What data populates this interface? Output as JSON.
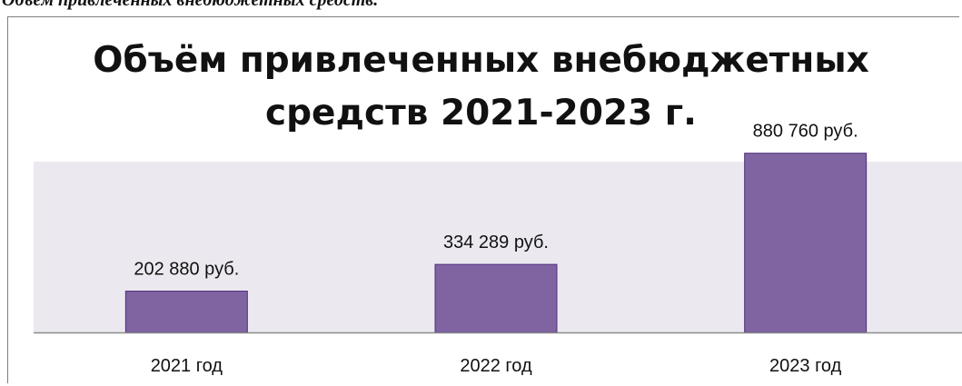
{
  "caption": "Объём привлеченных внебюджетных средств.",
  "chart_data": {
    "type": "bar",
    "title": "Объём привлеченных внебюджетных средств 2021-2023 г.",
    "title_lines": [
      "Объём привлеченных внебюджетных",
      "средств 2021-2023 г."
    ],
    "categories": [
      "2021 год",
      "2022 год",
      "2023 год"
    ],
    "values": [
      202880,
      334289,
      880760
    ],
    "data_labels": [
      "202 880 руб.",
      "334 289 руб.",
      "880 760 руб."
    ],
    "xlabel": "",
    "ylabel": "",
    "ylim": [
      0,
      1000000
    ],
    "grid": false,
    "legend": "none",
    "colors": {
      "bar_fill": "#8064a2",
      "bar_stroke": "#4f2d7f",
      "plot_area": "#ebe9ef",
      "axis": "#8c8c8c"
    }
  }
}
